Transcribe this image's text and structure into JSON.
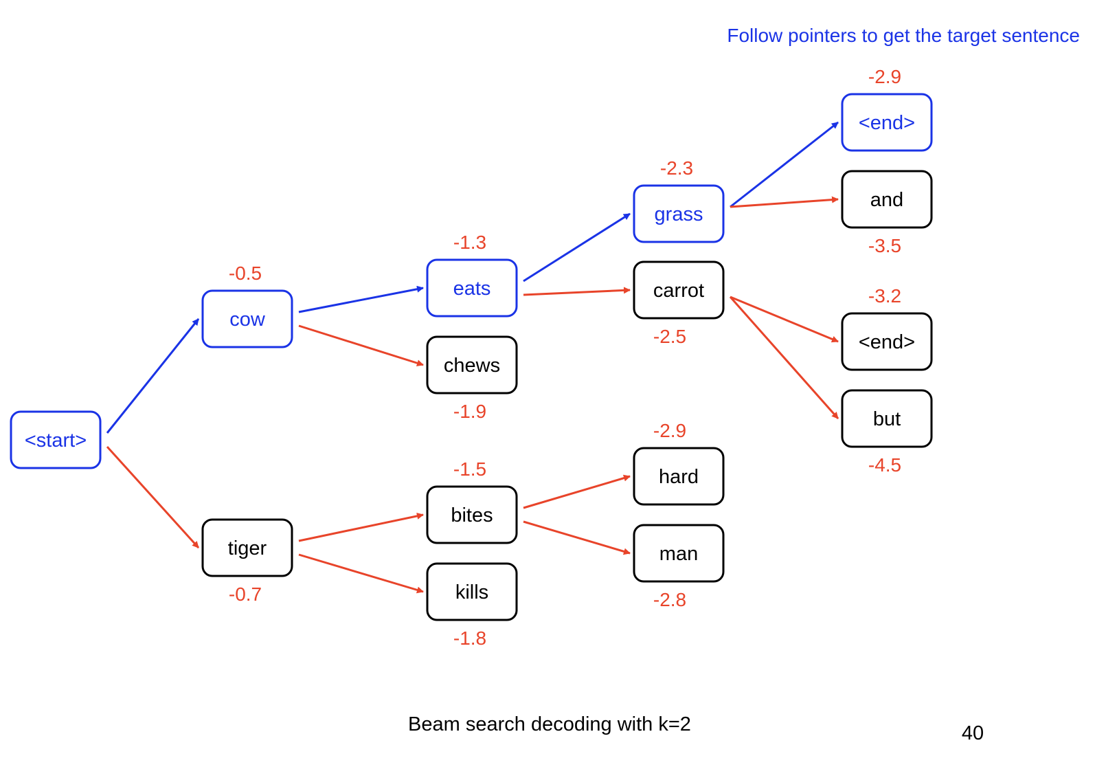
{
  "header_note": "Follow pointers to get the target sentence",
  "caption": "Beam search decoding with k=2",
  "slide_number": "40",
  "colors": {
    "selected": "#1a33e6",
    "pruned": "#e8442a",
    "score": "#e8442a",
    "default_text": "#000000"
  },
  "nodes": [
    {
      "id": "start",
      "label": "<start>",
      "score": "",
      "selected": true
    },
    {
      "id": "cow",
      "label": "cow",
      "score": "-0.5",
      "selected": true
    },
    {
      "id": "tiger",
      "label": "tiger",
      "score": "-0.7",
      "selected": false
    },
    {
      "id": "eats",
      "label": "eats",
      "score": "-1.3",
      "selected": true
    },
    {
      "id": "chews",
      "label": "chews",
      "score": "-1.9",
      "selected": false
    },
    {
      "id": "bites",
      "label": "bites",
      "score": "-1.5",
      "selected": false
    },
    {
      "id": "kills",
      "label": "kills",
      "score": "-1.8",
      "selected": false
    },
    {
      "id": "grass",
      "label": "grass",
      "score": "-2.3",
      "selected": true
    },
    {
      "id": "carrot",
      "label": "carrot",
      "score": "-2.5",
      "selected": false
    },
    {
      "id": "hard",
      "label": "hard",
      "score": "-2.9",
      "selected": false
    },
    {
      "id": "man",
      "label": "man",
      "score": "-2.8",
      "selected": false
    },
    {
      "id": "end1",
      "label": "<end>",
      "score": "-2.9",
      "selected": true
    },
    {
      "id": "and",
      "label": "and",
      "score": "-3.5",
      "selected": false
    },
    {
      "id": "end2",
      "label": "<end>",
      "score": "-3.2",
      "selected": false
    },
    {
      "id": "but",
      "label": "but",
      "score": "-4.5",
      "selected": false
    }
  ],
  "edges": [
    {
      "from": "start",
      "to": "cow",
      "selected": true
    },
    {
      "from": "start",
      "to": "tiger",
      "selected": false
    },
    {
      "from": "cow",
      "to": "eats",
      "selected": true
    },
    {
      "from": "cow",
      "to": "chews",
      "selected": false
    },
    {
      "from": "tiger",
      "to": "bites",
      "selected": false
    },
    {
      "from": "tiger",
      "to": "kills",
      "selected": false
    },
    {
      "from": "eats",
      "to": "grass",
      "selected": true
    },
    {
      "from": "eats",
      "to": "carrot",
      "selected": false
    },
    {
      "from": "bites",
      "to": "hard",
      "selected": false
    },
    {
      "from": "bites",
      "to": "man",
      "selected": false
    },
    {
      "from": "grass",
      "to": "end1",
      "selected": true
    },
    {
      "from": "grass",
      "to": "and",
      "selected": false
    },
    {
      "from": "carrot",
      "to": "end2",
      "selected": false
    },
    {
      "from": "carrot",
      "to": "but",
      "selected": false
    }
  ]
}
